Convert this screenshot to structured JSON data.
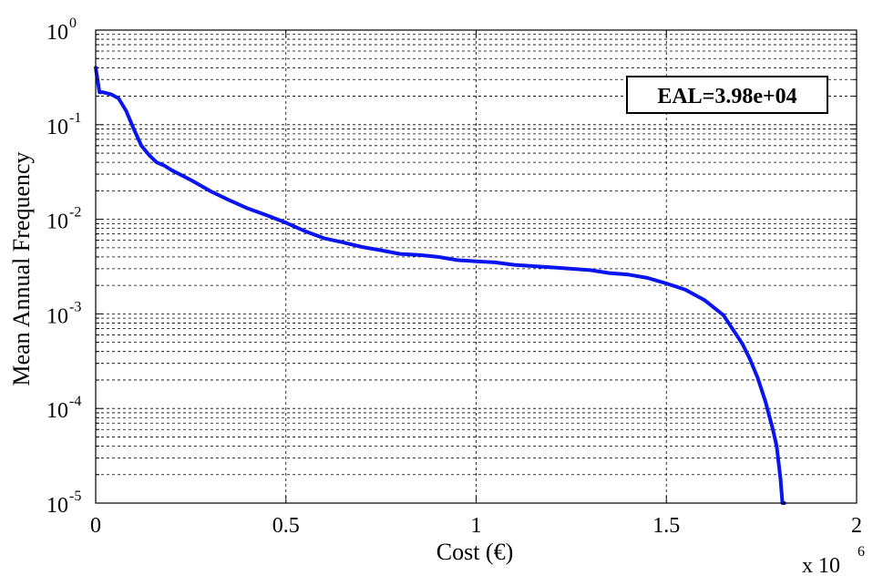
{
  "chart_data": {
    "type": "line",
    "title": "",
    "xlabel": "Cost (€)",
    "ylabel": "Mean Annual Frequency",
    "x_multiplier_label": {
      "base": "x 10",
      "exp": "6"
    },
    "x_scale": "linear",
    "y_scale": "log",
    "xlim": [
      0,
      2000000
    ],
    "ylim": [
      1e-05,
      1
    ],
    "x_ticks": [
      {
        "value": 0,
        "label": "0"
      },
      {
        "value": 500000,
        "label": "0.5"
      },
      {
        "value": 1000000,
        "label": "1"
      },
      {
        "value": 1500000,
        "label": "1.5"
      },
      {
        "value": 2000000,
        "label": "2"
      }
    ],
    "y_ticks": [
      {
        "value": 1e-05,
        "base": "10",
        "exp": "-5"
      },
      {
        "value": 0.0001,
        "base": "10",
        "exp": "-4"
      },
      {
        "value": 0.001,
        "base": "10",
        "exp": "-3"
      },
      {
        "value": 0.01,
        "base": "10",
        "exp": "-2"
      },
      {
        "value": 0.1,
        "base": "10",
        "exp": "-1"
      },
      {
        "value": 1,
        "base": "10",
        "exp": "0"
      }
    ],
    "grid": true,
    "minor_grid_y": true,
    "annotation": "EAL=3.98e+04",
    "series": [
      {
        "color": "#0a14f0",
        "x": [
          0,
          10000,
          20000,
          40000,
          60000,
          80000,
          100000,
          120000,
          140000,
          160000,
          180000,
          200000,
          250000,
          300000,
          350000,
          400000,
          450000,
          500000,
          550000,
          600000,
          650000,
          700000,
          750000,
          800000,
          850000,
          900000,
          950000,
          1000000,
          1050000,
          1100000,
          1150000,
          1200000,
          1250000,
          1300000,
          1350000,
          1400000,
          1450000,
          1500000,
          1550000,
          1600000,
          1650000,
          1700000,
          1720000,
          1740000,
          1760000,
          1780000,
          1790000,
          1800000,
          1805000,
          1810000
        ],
        "y": [
          0.4,
          0.22,
          0.22,
          0.21,
          0.19,
          0.14,
          0.09,
          0.06,
          0.048,
          0.04,
          0.037,
          0.033,
          0.026,
          0.02,
          0.016,
          0.013,
          0.011,
          0.0092,
          0.0075,
          0.0063,
          0.0057,
          0.0051,
          0.0047,
          0.0043,
          0.0042,
          0.004,
          0.0037,
          0.0036,
          0.0035,
          0.0033,
          0.0032,
          0.0031,
          0.003,
          0.0029,
          0.0027,
          0.0026,
          0.0024,
          0.0021,
          0.0018,
          0.0014,
          0.00097,
          0.00048,
          0.00033,
          0.00021,
          0.00012,
          6e-05,
          4e-05,
          1.8e-05,
          1e-05,
          1e-05
        ]
      }
    ]
  }
}
